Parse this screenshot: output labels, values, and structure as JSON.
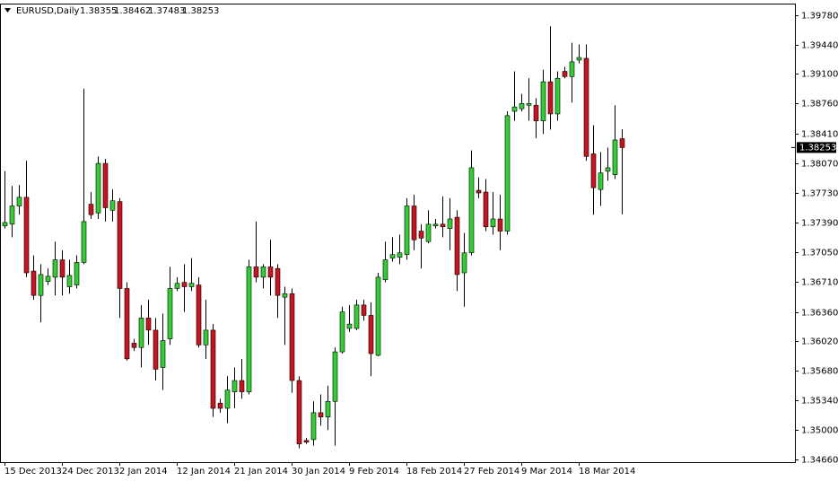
{
  "chart_data": {
    "type": "candlestick",
    "title": "EURUSD,Daily",
    "categories": [
      "15 Dec 2013",
      null,
      null,
      null,
      null,
      null,
      null,
      null,
      "24 Dec 2013",
      null,
      null,
      null,
      null,
      null,
      null,
      null,
      "2 Jan 2014",
      null,
      null,
      null,
      null,
      null,
      null,
      null,
      "12 Jan 2014",
      null,
      null,
      null,
      null,
      null,
      null,
      null,
      "21 Jan 2014",
      null,
      null,
      null,
      null,
      null,
      null,
      null,
      "30 Jan 2014",
      null,
      null,
      null,
      null,
      null,
      null,
      null,
      "9 Feb 2014",
      null,
      null,
      null,
      null,
      null,
      null,
      null,
      "18 Feb 2014",
      null,
      null,
      null,
      null,
      null,
      null,
      null,
      "27 Feb 2014",
      null,
      null,
      null,
      null,
      null,
      null,
      null,
      "9 Mar 2014",
      null,
      null,
      null,
      null,
      null,
      null,
      null,
      "18 Mar 2014",
      null,
      null,
      null,
      null,
      null,
      null
    ],
    "open": [
      1.3735,
      1.3737,
      1.3758,
      1.3768,
      1.3683,
      1.3655,
      1.3671,
      1.3676,
      1.3696,
      1.3665,
      1.3667,
      1.3693,
      1.376,
      1.375,
      1.3807,
      1.3753,
      1.3763,
      1.3663,
      1.36,
      1.3595,
      1.3629,
      1.3615,
      1.3572,
      1.3605,
      1.3663,
      1.367,
      1.3665,
      1.3667,
      1.3598,
      1.3615,
      1.3531,
      1.3525,
      1.3544,
      1.3557,
      1.3544,
      1.3688,
      1.3676,
      1.3688,
      1.3686,
      1.3653,
      1.3657,
      1.3557,
      1.3488,
      1.3489,
      1.352,
      1.3515,
      1.3533,
      1.359,
      1.3617,
      1.3617,
      1.3644,
      1.3632,
      1.3586,
      1.3673,
      1.3698,
      1.3699,
      1.3702,
      1.3758,
      1.3729,
      1.3717,
      1.3735,
      1.3737,
      1.3732,
      1.3745,
      1.3681,
      1.3704,
      1.3776,
      1.3774,
      1.3734,
      1.3743,
      1.3729,
      1.3867,
      1.387,
      1.3874,
      1.3874,
      1.3856,
      1.3901,
      1.3864,
      1.3913,
      1.3907,
      1.3926,
      1.3928,
      1.3818,
      1.3777,
      1.3798,
      1.3794,
      1.38355
    ],
    "high": [
      1.3798,
      1.3781,
      1.3782,
      1.381,
      1.3701,
      1.3691,
      1.3686,
      1.3717,
      1.3707,
      1.3696,
      1.3701,
      1.3893,
      1.3774,
      1.3815,
      1.3812,
      1.3777,
      1.3767,
      1.367,
      1.3605,
      1.3644,
      1.365,
      1.3629,
      1.3634,
      1.3688,
      1.3676,
      1.3691,
      1.3698,
      1.3676,
      1.365,
      1.3622,
      1.3536,
      1.3562,
      1.3572,
      1.3582,
      1.3696,
      1.374,
      1.3691,
      1.3719,
      1.3691,
      1.3665,
      1.3663,
      1.3562,
      1.3491,
      1.3533,
      1.3541,
      1.3551,
      1.3595,
      1.3642,
      1.3644,
      1.365,
      1.365,
      1.3647,
      1.3681,
      1.3717,
      1.3722,
      1.3725,
      1.3767,
      1.3771,
      1.3737,
      1.3753,
      1.3743,
      1.3769,
      1.3767,
      1.3753,
      1.3727,
      1.3822,
      1.3791,
      1.3789,
      1.3774,
      1.3771,
      1.3867,
      1.3913,
      1.3887,
      1.3905,
      1.3882,
      1.3915,
      1.3965,
      1.3913,
      1.3918,
      1.3946,
      1.3944,
      1.3944,
      1.3851,
      1.382,
      1.3825,
      1.3874,
      1.38462
    ],
    "low": [
      1.3732,
      1.3722,
      1.3748,
      1.3676,
      1.365,
      1.3624,
      1.3667,
      1.3655,
      1.3655,
      1.3657,
      1.3663,
      1.3691,
      1.3743,
      1.3743,
      1.374,
      1.374,
      1.3629,
      1.358,
      1.3591,
      1.3572,
      1.3598,
      1.3557,
      1.3546,
      1.3598,
      1.366,
      1.3636,
      1.366,
      1.3595,
      1.3582,
      1.3515,
      1.352,
      1.3508,
      1.3525,
      1.3536,
      1.3541,
      1.367,
      1.3663,
      1.3655,
      1.3629,
      1.3598,
      1.3543,
      1.3479,
      1.3484,
      1.3482,
      1.3505,
      1.35,
      1.3482,
      1.3588,
      1.3613,
      1.3615,
      1.3626,
      1.3562,
      1.3585,
      1.367,
      1.3694,
      1.3691,
      1.3696,
      1.3707,
      1.3686,
      1.3715,
      1.3732,
      1.3722,
      1.3707,
      1.366,
      1.3642,
      1.3701,
      1.3767,
      1.3729,
      1.3725,
      1.3707,
      1.3725,
      1.3856,
      1.3867,
      1.3856,
      1.3836,
      1.3841,
      1.3846,
      1.3856,
      1.3905,
      1.3877,
      1.3922,
      1.381,
      1.3748,
      1.3758,
      1.3787,
      1.3789,
      1.37483
    ],
    "close": [
      1.3739,
      1.3758,
      1.3768,
      1.3681,
      1.3655,
      1.3679,
      1.3677,
      1.3696,
      1.3676,
      1.3678,
      1.3693,
      1.374,
      1.3748,
      1.3807,
      1.3756,
      1.3764,
      1.3663,
      1.3582,
      1.3595,
      1.3629,
      1.3615,
      1.357,
      1.3603,
      1.3663,
      1.3669,
      1.3665,
      1.3669,
      1.3598,
      1.3615,
      1.3525,
      1.3525,
      1.3546,
      1.3557,
      1.3544,
      1.3688,
      1.3676,
      1.3688,
      1.3676,
      1.3655,
      1.3657,
      1.3557,
      1.3484,
      1.3486,
      1.352,
      1.3515,
      1.3533,
      1.359,
      1.3636,
      1.3622,
      1.3644,
      1.3632,
      1.3588,
      1.3676,
      1.3696,
      1.3702,
      1.3704,
      1.3758,
      1.3719,
      1.3721,
      1.3737,
      1.3737,
      1.3734,
      1.3743,
      1.3679,
      1.3704,
      1.3802,
      1.3773,
      1.3734,
      1.3743,
      1.3729,
      1.3862,
      1.3872,
      1.3876,
      1.3876,
      1.3856,
      1.3901,
      1.3864,
      1.3905,
      1.3907,
      1.3924,
      1.3929,
      1.3815,
      1.3779,
      1.3796,
      1.3802,
      1.3834,
      1.38253
    ],
    "up_color": "#32cd32",
    "down_color": "#c8141e",
    "ylim": [
      1.3463,
      1.399
    ],
    "yticks": [
      {
        "value": 1.3978,
        "label": "1.39780"
      },
      {
        "value": 1.3944,
        "label": "1.39440"
      },
      {
        "value": 1.391,
        "label": "1.39100"
      },
      {
        "value": 1.3876,
        "label": "1.38760"
      },
      {
        "value": 1.3841,
        "label": "1.38410"
      },
      {
        "value": 1.3807,
        "label": "1.38070"
      },
      {
        "value": 1.3773,
        "label": "1.37730"
      },
      {
        "value": 1.3739,
        "label": "1.37390"
      },
      {
        "value": 1.3705,
        "label": "1.37050"
      },
      {
        "value": 1.3671,
        "label": "1.36710"
      },
      {
        "value": 1.3636,
        "label": "1.36360"
      },
      {
        "value": 1.3602,
        "label": "1.36020"
      },
      {
        "value": 1.3568,
        "label": "1.35680"
      },
      {
        "value": 1.3534,
        "label": "1.35340"
      },
      {
        "value": 1.35,
        "label": "1.35000"
      },
      {
        "value": 1.3466,
        "label": "1.34660"
      }
    ]
  }
}
